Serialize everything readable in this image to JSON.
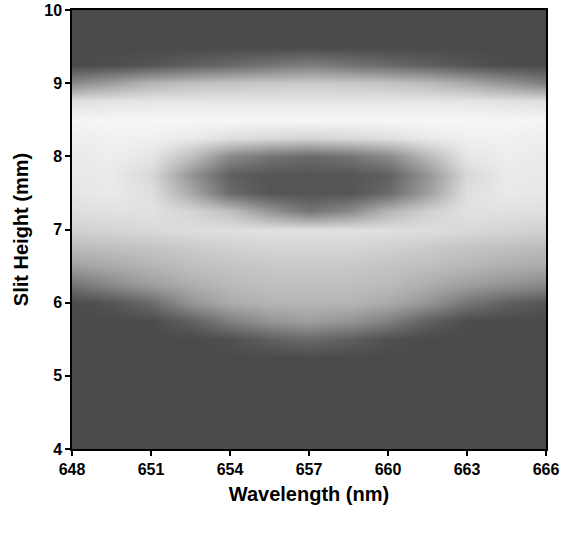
{
  "chart_data": {
    "type": "heatmap",
    "x_label": "Wavelength (nm)",
    "y_label": "Slit Height (mm)",
    "x": [
      648,
      649.5,
      651,
      652.5,
      654,
      655.5,
      657,
      658.5,
      660,
      661.5,
      663,
      664.5,
      666
    ],
    "y": [
      4.0,
      4.25,
      4.5,
      4.75,
      5.0,
      5.25,
      5.5,
      5.75,
      6.0,
      6.25,
      6.5,
      6.75,
      7.0,
      7.25,
      7.5,
      7.75,
      8.0,
      8.25,
      8.5,
      8.75,
      9.0,
      9.25,
      9.5,
      9.75,
      10.0
    ],
    "cells": [
      [
        0.15,
        0.15,
        0.15,
        0.15,
        0.15,
        0.15,
        0.15,
        0.15,
        0.15,
        0.15,
        0.15,
        0.15,
        0.15
      ],
      [
        0.15,
        0.15,
        0.15,
        0.15,
        0.15,
        0.15,
        0.15,
        0.15,
        0.15,
        0.15,
        0.15,
        0.15,
        0.15
      ],
      [
        0.15,
        0.15,
        0.15,
        0.15,
        0.15,
        0.15,
        0.15,
        0.15,
        0.15,
        0.15,
        0.15,
        0.15,
        0.15
      ],
      [
        0.15,
        0.15,
        0.15,
        0.15,
        0.15,
        0.15,
        0.15,
        0.15,
        0.15,
        0.15,
        0.15,
        0.15,
        0.15
      ],
      [
        0.15,
        0.15,
        0.15,
        0.15,
        0.15,
        0.15,
        0.15,
        0.15,
        0.15,
        0.15,
        0.15,
        0.15,
        0.15
      ],
      [
        0.15,
        0.15,
        0.15,
        0.15,
        0.15,
        0.15,
        0.15,
        0.15,
        0.15,
        0.15,
        0.15,
        0.15,
        0.15
      ],
      [
        0.15,
        0.15,
        0.15,
        0.15,
        0.18,
        0.25,
        0.3,
        0.25,
        0.18,
        0.15,
        0.15,
        0.15,
        0.15
      ],
      [
        0.15,
        0.15,
        0.16,
        0.25,
        0.4,
        0.5,
        0.55,
        0.5,
        0.4,
        0.25,
        0.16,
        0.15,
        0.15
      ],
      [
        0.15,
        0.2,
        0.3,
        0.5,
        0.6,
        0.65,
        0.65,
        0.65,
        0.6,
        0.5,
        0.35,
        0.25,
        0.2
      ],
      [
        0.35,
        0.45,
        0.55,
        0.62,
        0.68,
        0.7,
        0.7,
        0.7,
        0.68,
        0.62,
        0.55,
        0.5,
        0.45
      ],
      [
        0.55,
        0.6,
        0.65,
        0.7,
        0.72,
        0.74,
        0.75,
        0.74,
        0.72,
        0.7,
        0.66,
        0.62,
        0.6
      ],
      [
        0.68,
        0.7,
        0.72,
        0.75,
        0.78,
        0.8,
        0.8,
        0.8,
        0.78,
        0.75,
        0.72,
        0.7,
        0.68
      ],
      [
        0.78,
        0.8,
        0.82,
        0.84,
        0.85,
        0.86,
        0.86,
        0.86,
        0.85,
        0.84,
        0.82,
        0.8,
        0.78
      ],
      [
        0.85,
        0.86,
        0.86,
        0.8,
        0.7,
        0.5,
        0.35,
        0.45,
        0.65,
        0.78,
        0.86,
        0.86,
        0.85
      ],
      [
        0.88,
        0.9,
        0.85,
        0.6,
        0.3,
        0.2,
        0.2,
        0.2,
        0.3,
        0.55,
        0.85,
        0.9,
        0.88
      ],
      [
        0.9,
        0.9,
        0.82,
        0.5,
        0.25,
        0.2,
        0.2,
        0.2,
        0.25,
        0.5,
        0.82,
        0.9,
        0.9
      ],
      [
        0.9,
        0.92,
        0.88,
        0.7,
        0.45,
        0.35,
        0.3,
        0.35,
        0.45,
        0.68,
        0.88,
        0.92,
        0.9
      ],
      [
        0.92,
        0.93,
        0.93,
        0.9,
        0.85,
        0.82,
        0.8,
        0.82,
        0.85,
        0.9,
        0.93,
        0.93,
        0.92
      ],
      [
        0.95,
        0.96,
        0.96,
        0.96,
        0.96,
        0.96,
        0.96,
        0.96,
        0.96,
        0.96,
        0.96,
        0.96,
        0.95
      ],
      [
        0.85,
        0.87,
        0.88,
        0.88,
        0.88,
        0.88,
        0.88,
        0.88,
        0.88,
        0.88,
        0.88,
        0.86,
        0.85
      ],
      [
        0.45,
        0.55,
        0.65,
        0.7,
        0.72,
        0.74,
        0.75,
        0.74,
        0.72,
        0.68,
        0.6,
        0.5,
        0.4
      ],
      [
        0.15,
        0.17,
        0.2,
        0.25,
        0.3,
        0.35,
        0.4,
        0.35,
        0.3,
        0.25,
        0.2,
        0.16,
        0.15
      ],
      [
        0.15,
        0.15,
        0.15,
        0.15,
        0.15,
        0.15,
        0.15,
        0.15,
        0.15,
        0.15,
        0.15,
        0.15,
        0.15
      ],
      [
        0.15,
        0.15,
        0.15,
        0.15,
        0.15,
        0.15,
        0.15,
        0.15,
        0.15,
        0.15,
        0.15,
        0.15,
        0.15
      ],
      [
        0.15,
        0.15,
        0.15,
        0.15,
        0.15,
        0.15,
        0.15,
        0.15,
        0.15,
        0.15,
        0.15,
        0.15,
        0.15
      ]
    ],
    "zlim": [
      0,
      1
    ],
    "xlim": [
      648,
      666
    ],
    "xticks": [
      648,
      651,
      654,
      657,
      660,
      663,
      666
    ],
    "ylim": [
      4,
      10
    ],
    "yticks": [
      4,
      5,
      6,
      7,
      8,
      9,
      10
    ],
    "grid": false
  }
}
